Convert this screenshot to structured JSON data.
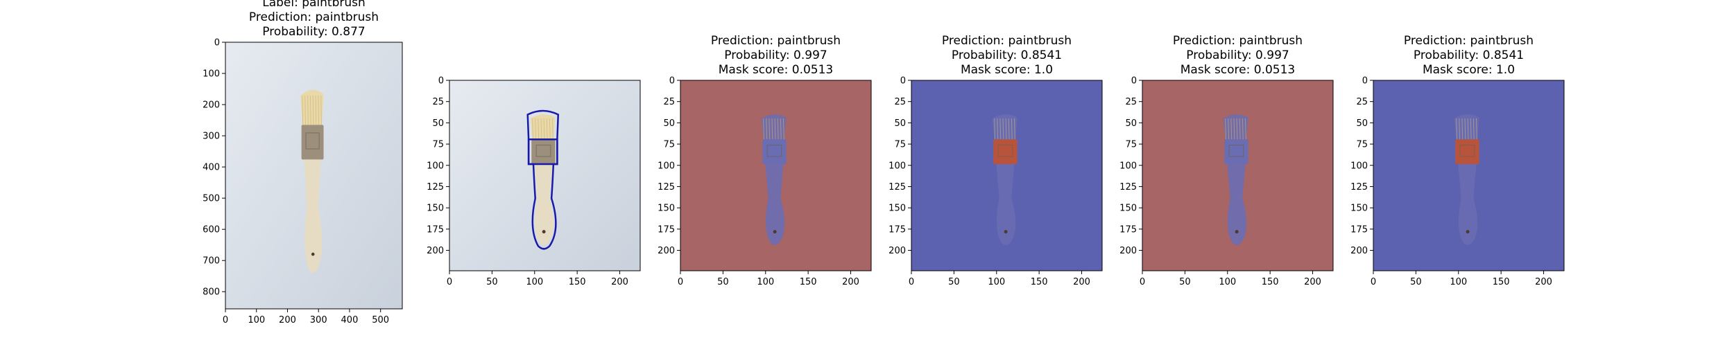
{
  "chart_data": [
    {
      "type": "image",
      "title_lines": [
        "Label: paintbrush",
        "Prediction: paintbrush",
        "Probability: 0.877"
      ],
      "overlay": "none",
      "x_ticks": [
        0,
        100,
        200,
        300,
        400,
        500
      ],
      "y_ticks": [
        0,
        100,
        200,
        300,
        400,
        500,
        600,
        700,
        800
      ],
      "xlim": [
        0,
        570
      ],
      "ylim": [
        0,
        855
      ]
    },
    {
      "type": "image",
      "title_lines": [],
      "overlay": "contour",
      "x_ticks": [
        0,
        50,
        100,
        150,
        200
      ],
      "y_ticks": [
        0,
        25,
        50,
        75,
        100,
        125,
        150,
        175,
        200
      ],
      "xlim": [
        0,
        224
      ],
      "ylim": [
        0,
        224
      ]
    },
    {
      "type": "image",
      "title_lines": [
        "Prediction: paintbrush",
        "Probability: 0.997",
        "Mask score: 0.0513"
      ],
      "overlay": "red-background",
      "x_ticks": [
        0,
        50,
        100,
        150,
        200
      ],
      "y_ticks": [
        0,
        25,
        50,
        75,
        100,
        125,
        150,
        175,
        200
      ],
      "xlim": [
        0,
        224
      ],
      "ylim": [
        0,
        224
      ]
    },
    {
      "type": "image",
      "title_lines": [
        "Prediction: paintbrush",
        "Probability: 0.8541",
        "Mask score: 1.0"
      ],
      "overlay": "blue-background",
      "x_ticks": [
        0,
        50,
        100,
        150,
        200
      ],
      "y_ticks": [
        0,
        25,
        50,
        75,
        100,
        125,
        150,
        175,
        200
      ],
      "xlim": [
        0,
        224
      ],
      "ylim": [
        0,
        224
      ]
    },
    {
      "type": "image",
      "title_lines": [
        "Prediction: paintbrush",
        "Probability: 0.997",
        "Mask score: 0.0513"
      ],
      "overlay": "red-background",
      "x_ticks": [
        0,
        50,
        100,
        150,
        200
      ],
      "y_ticks": [
        0,
        25,
        50,
        75,
        100,
        125,
        150,
        175,
        200
      ],
      "xlim": [
        0,
        224
      ],
      "ylim": [
        0,
        224
      ]
    },
    {
      "type": "image",
      "title_lines": [
        "Prediction: paintbrush",
        "Probability: 0.8541",
        "Mask score: 1.0"
      ],
      "overlay": "blue-background",
      "x_ticks": [
        0,
        50,
        100,
        150,
        200
      ],
      "y_ticks": [
        0,
        25,
        50,
        75,
        100,
        125,
        150,
        175,
        200
      ],
      "xlim": [
        0,
        224
      ],
      "ylim": [
        0,
        224
      ]
    }
  ],
  "colors": {
    "background_photo": "#d6dde6",
    "bristles": "#ead9a8",
    "ferrule": "#9c8f7c",
    "handle": "#e6dcc4",
    "contour": "#1a1aa8",
    "red_mask": "#a86566",
    "blue_mask": "#5c62b0",
    "ferrule_red": "#b8543c",
    "brush_blue": "#6a6db2"
  }
}
